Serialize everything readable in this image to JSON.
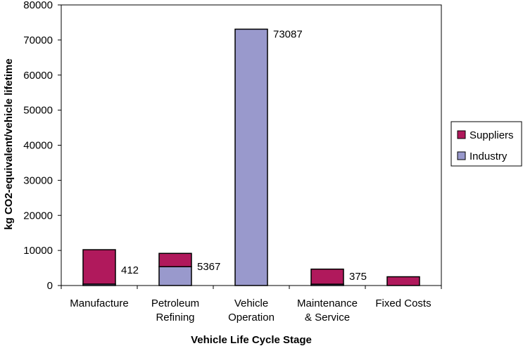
{
  "chart_data": {
    "type": "bar",
    "stacked": true,
    "title": "",
    "xlabel": "Vehicle Life Cycle Stage",
    "ylabel": "kg CO2-equivalent/vehicle lifetime",
    "ylim": [
      0,
      80000
    ],
    "yticks": [
      "0",
      "10000",
      "20000",
      "30000",
      "40000",
      "50000",
      "60000",
      "70000",
      "80000"
    ],
    "categories": [
      [
        "Manufacture"
      ],
      [
        "Petroleum",
        "Refining"
      ],
      [
        "Vehicle",
        "Operation"
      ],
      [
        "Maintenance",
        "& Service"
      ],
      [
        "Fixed Costs"
      ]
    ],
    "series": [
      {
        "name": "Industry",
        "color": "#9999cc",
        "values": [
          412,
          5367,
          73087,
          375,
          0
        ]
      },
      {
        "name": "Suppliers",
        "color": "#b0195c",
        "values": [
          9800,
          3800,
          0,
          4300,
          2500
        ]
      }
    ],
    "data_labels": [
      "412",
      "5367",
      "73087",
      "375",
      ""
    ],
    "legend": {
      "position": "right",
      "entries": [
        {
          "name": "Suppliers",
          "color": "#b0195c"
        },
        {
          "name": "Industry",
          "color": "#9999cc"
        }
      ]
    },
    "grid": false
  }
}
